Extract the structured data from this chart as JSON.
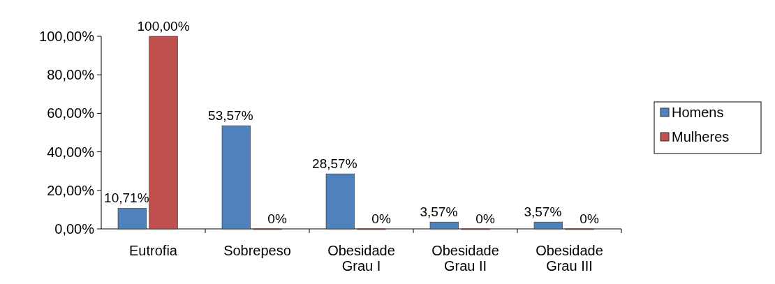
{
  "chart_data": {
    "type": "bar",
    "categories": [
      "Eutrofia",
      "Sobrepeso",
      "Obesidade Grau I",
      "Obesidade Grau II",
      "Obesidade Grau III"
    ],
    "series": [
      {
        "name": "Homens",
        "color": "#4f81bd",
        "values": [
          10.71,
          53.57,
          28.57,
          3.57,
          3.57
        ],
        "value_labels": [
          "10,71%",
          "53,57%",
          "28,57%",
          "3,57%",
          "3,57%"
        ]
      },
      {
        "name": "Mulheres",
        "color": "#c0504d",
        "values": [
          100,
          0,
          0,
          0,
          0
        ],
        "value_labels": [
          "100,00%",
          "0%",
          "0%",
          "0%",
          "0%"
        ]
      }
    ],
    "ylim": [
      0,
      100
    ],
    "yticks": [
      {
        "value": 0,
        "label": "0,00%"
      },
      {
        "value": 20,
        "label": "20,00%"
      },
      {
        "value": 40,
        "label": "40,00%"
      },
      {
        "value": 60,
        "label": "60,00%"
      },
      {
        "value": 80,
        "label": "80,00%"
      },
      {
        "value": 100,
        "label": "100,00%"
      }
    ],
    "legend": "right",
    "grid": false
  }
}
